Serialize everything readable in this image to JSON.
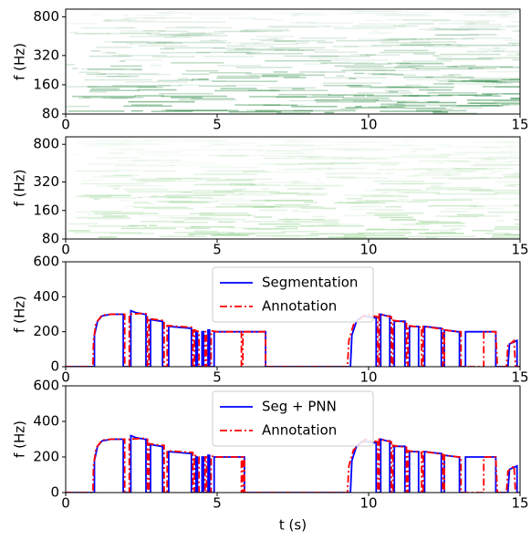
{
  "chart_data": [
    {
      "type": "spectrogram",
      "ylabel": "f (Hz)",
      "xlim": [
        0,
        15
      ],
      "xticks": [
        0,
        5,
        10,
        15
      ],
      "ylim": [
        80,
        960
      ],
      "yticks": [
        80,
        160,
        320,
        800
      ],
      "yscale": "log",
      "color": "#2e8b45"
    },
    {
      "type": "spectrogram",
      "ylabel": "f (Hz)",
      "xlim": [
        0,
        15
      ],
      "xticks": [
        0,
        5,
        10,
        15
      ],
      "ylim": [
        80,
        960
      ],
      "yticks": [
        80,
        160,
        320,
        800
      ],
      "yscale": "log",
      "color": "#8fcf8a"
    },
    {
      "type": "line",
      "ylabel": "f (Hz)",
      "xlim": [
        0,
        15
      ],
      "xticks": [
        0,
        5,
        10,
        15
      ],
      "ylim": [
        0,
        600
      ],
      "yticks": [
        0,
        200,
        400,
        600
      ],
      "legend": "upper center",
      "series": [
        {
          "name": "Segmentation",
          "color": "#0000ff",
          "linestyle": "solid",
          "x": [
            0,
            0.95,
            0.95,
            1.05,
            1.2,
            1.5,
            1.9,
            1.9,
            2.15,
            2.15,
            2.3,
            2.6,
            2.65,
            2.65,
            2.8,
            2.8,
            3.15,
            3.2,
            3.2,
            3.4,
            3.4,
            4.1,
            4.15,
            4.15,
            4.3,
            4.3,
            4.35,
            4.35,
            4.5,
            4.5,
            4.55,
            4.55,
            4.7,
            4.7,
            4.75,
            4.75,
            4.9,
            4.9,
            6.6,
            6.6,
            9.4,
            9.45,
            9.6,
            9.8,
            10.2,
            10.25,
            10.25,
            10.4,
            10.4,
            10.6,
            10.7,
            10.7,
            10.85,
            10.85,
            11.15,
            11.2,
            11.2,
            11.35,
            11.35,
            11.6,
            11.65,
            11.65,
            11.85,
            11.85,
            12.35,
            12.4,
            12.4,
            12.5,
            12.5,
            12.95,
            13.0,
            13.0,
            13.2,
            13.2,
            14.2,
            14.2,
            14.6,
            14.65,
            14.9,
            14.9,
            15
          ],
          "values": [
            0,
            0,
            180,
            260,
            290,
            300,
            300,
            0,
            0,
            320,
            310,
            300,
            300,
            0,
            0,
            270,
            260,
            260,
            0,
            0,
            230,
            220,
            220,
            0,
            0,
            200,
            200,
            0,
            0,
            200,
            200,
            0,
            0,
            210,
            210,
            0,
            0,
            200,
            200,
            0,
            0,
            180,
            260,
            290,
            280,
            280,
            0,
            0,
            300,
            290,
            290,
            0,
            0,
            260,
            260,
            260,
            0,
            0,
            230,
            230,
            230,
            0,
            0,
            230,
            220,
            220,
            0,
            0,
            210,
            200,
            200,
            0,
            0,
            200,
            200,
            0,
            0,
            130,
            150,
            0,
            0
          ]
        },
        {
          "name": "Annotation",
          "color": "#ff0000",
          "linestyle": "dashdot",
          "x": [
            0,
            0.9,
            0.92,
            1.0,
            1.2,
            1.5,
            1.95,
            1.95,
            2.1,
            2.1,
            2.6,
            2.7,
            2.7,
            2.75,
            2.75,
            3.2,
            3.25,
            3.25,
            3.35,
            3.35,
            4.2,
            4.2,
            4.25,
            4.25,
            4.4,
            4.4,
            4.6,
            4.6,
            4.65,
            4.65,
            4.8,
            4.8,
            5.0,
            5.8,
            5.8,
            5.85,
            5.85,
            6.6,
            6.6,
            9.3,
            9.35,
            9.5,
            9.7,
            9.9,
            10.3,
            10.3,
            10.35,
            10.35,
            10.75,
            10.75,
            10.8,
            10.8,
            11.2,
            11.25,
            11.25,
            11.3,
            11.3,
            11.75,
            11.75,
            11.8,
            11.8,
            12.45,
            12.45,
            12.5,
            12.5,
            13.0,
            13.05,
            13.05,
            13.8,
            13.8,
            14.2,
            14.25,
            14.55,
            14.6,
            14.8,
            14.85,
            15
          ],
          "values": [
            0,
            0,
            150,
            250,
            295,
            300,
            300,
            0,
            0,
            300,
            305,
            300,
            0,
            0,
            275,
            265,
            265,
            0,
            0,
            235,
            225,
            0,
            0,
            210,
            200,
            0,
            0,
            200,
            200,
            0,
            0,
            205,
            200,
            200,
            0,
            0,
            200,
            200,
            0,
            0,
            150,
            240,
            270,
            300,
            285,
            0,
            0,
            300,
            285,
            0,
            0,
            265,
            255,
            255,
            0,
            0,
            235,
            225,
            0,
            0,
            230,
            215,
            0,
            0,
            210,
            200,
            200,
            0,
            0,
            200,
            200,
            0,
            0,
            120,
            150,
            0,
            0
          ]
        }
      ]
    },
    {
      "type": "line",
      "ylabel": "f (Hz)",
      "xlabel": "t (s)",
      "xlim": [
        0,
        15
      ],
      "xticks": [
        0,
        5,
        10,
        15
      ],
      "ylim": [
        0,
        600
      ],
      "yticks": [
        0,
        200,
        400,
        600
      ],
      "legend": "upper center",
      "series": [
        {
          "name": "Seg + PNN",
          "color": "#0000ff",
          "linestyle": "solid",
          "x": [
            0,
            0.95,
            0.95,
            1.05,
            1.2,
            1.5,
            1.9,
            1.9,
            2.15,
            2.15,
            2.3,
            2.6,
            2.65,
            2.65,
            2.8,
            2.8,
            3.15,
            3.2,
            3.2,
            3.4,
            3.4,
            4.1,
            4.15,
            4.15,
            4.3,
            4.3,
            4.35,
            4.35,
            4.5,
            4.5,
            4.55,
            4.55,
            4.7,
            4.7,
            4.75,
            4.75,
            4.9,
            4.9,
            5.9,
            5.9,
            9.4,
            9.45,
            9.6,
            9.8,
            10.2,
            10.25,
            10.25,
            10.4,
            10.4,
            10.6,
            10.7,
            10.7,
            10.85,
            10.85,
            11.15,
            11.2,
            11.2,
            11.35,
            11.35,
            11.6,
            11.65,
            11.65,
            11.85,
            11.85,
            12.35,
            12.4,
            12.4,
            12.5,
            12.5,
            12.95,
            13.0,
            13.0,
            13.2,
            13.2,
            14.2,
            14.2,
            14.6,
            14.65,
            14.9,
            14.9,
            15
          ],
          "values": [
            0,
            0,
            180,
            260,
            290,
            300,
            300,
            0,
            0,
            320,
            310,
            300,
            300,
            0,
            0,
            270,
            260,
            260,
            0,
            0,
            230,
            220,
            220,
            0,
            0,
            200,
            200,
            0,
            0,
            200,
            200,
            0,
            0,
            210,
            210,
            0,
            0,
            200,
            200,
            0,
            0,
            180,
            260,
            290,
            280,
            280,
            0,
            0,
            300,
            290,
            290,
            0,
            0,
            260,
            260,
            260,
            0,
            0,
            230,
            230,
            230,
            0,
            0,
            230,
            220,
            220,
            0,
            0,
            210,
            200,
            200,
            0,
            0,
            200,
            200,
            0,
            0,
            130,
            150,
            0,
            0
          ]
        },
        {
          "name": "Annotation",
          "color": "#ff0000",
          "linestyle": "dashdot",
          "x": [
            0,
            0.9,
            0.92,
            1.0,
            1.2,
            1.5,
            1.95,
            1.95,
            2.1,
            2.1,
            2.6,
            2.7,
            2.7,
            2.75,
            2.75,
            3.2,
            3.25,
            3.25,
            3.35,
            3.35,
            4.2,
            4.2,
            4.25,
            4.25,
            4.4,
            4.4,
            4.6,
            4.6,
            4.65,
            4.65,
            4.8,
            4.8,
            5.0,
            5.8,
            5.8,
            5.85,
            5.85,
            5.9,
            5.9,
            9.3,
            9.35,
            9.5,
            9.7,
            9.9,
            10.3,
            10.3,
            10.35,
            10.35,
            10.75,
            10.75,
            10.8,
            10.8,
            11.2,
            11.25,
            11.25,
            11.3,
            11.3,
            11.75,
            11.75,
            11.8,
            11.8,
            12.45,
            12.45,
            12.5,
            12.5,
            13.0,
            13.05,
            13.05,
            13.8,
            13.8,
            14.2,
            14.25,
            14.55,
            14.6,
            14.8,
            14.85,
            15
          ],
          "values": [
            0,
            0,
            150,
            250,
            295,
            300,
            300,
            0,
            0,
            300,
            305,
            300,
            0,
            0,
            275,
            265,
            265,
            0,
            0,
            235,
            225,
            0,
            0,
            210,
            200,
            0,
            0,
            200,
            200,
            0,
            0,
            205,
            200,
            200,
            0,
            0,
            200,
            200,
            0,
            0,
            150,
            240,
            270,
            300,
            285,
            0,
            0,
            300,
            285,
            0,
            0,
            265,
            255,
            255,
            0,
            0,
            235,
            225,
            0,
            0,
            230,
            215,
            0,
            0,
            210,
            200,
            200,
            0,
            0,
            200,
            200,
            0,
            0,
            120,
            150,
            0,
            0
          ]
        }
      ]
    }
  ]
}
